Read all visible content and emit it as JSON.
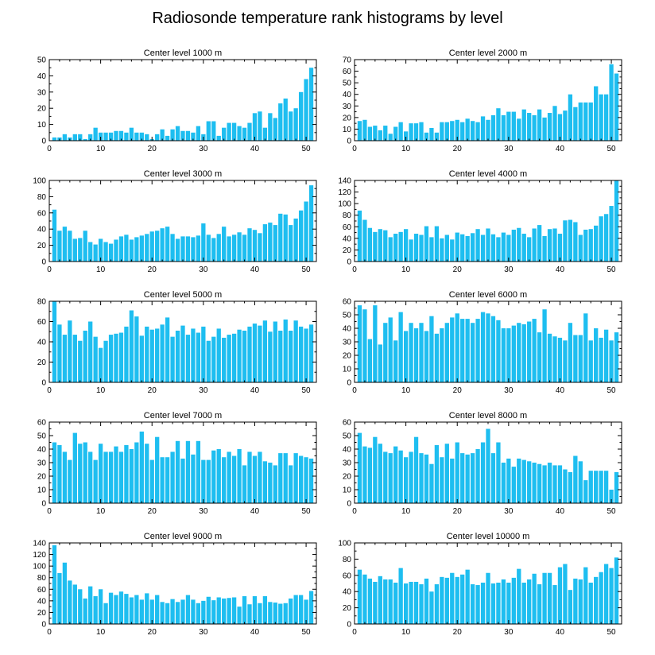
{
  "figure_title": "Radiosonde temperature rank histograms by level",
  "colors": {
    "bar": "#1ebef0",
    "axis": "#000000",
    "background": "#ffffff"
  },
  "chart_data": [
    {
      "type": "bar",
      "title": "Center level 1000 m",
      "xlim": [
        0,
        52
      ],
      "xticks": [
        0,
        10,
        20,
        30,
        40,
        50
      ],
      "ylim": [
        0,
        50
      ],
      "yticks": [
        0,
        10,
        20,
        30,
        40,
        50
      ],
      "x": [
        1,
        2,
        3,
        4,
        5,
        6,
        7,
        8,
        9,
        10,
        11,
        12,
        13,
        14,
        15,
        16,
        17,
        18,
        19,
        20,
        21,
        22,
        23,
        24,
        25,
        26,
        27,
        28,
        29,
        30,
        31,
        32,
        33,
        34,
        35,
        36,
        37,
        38,
        39,
        40,
        41,
        42,
        43,
        44,
        45,
        46,
        47,
        48,
        49,
        50,
        51
      ],
      "values": [
        2,
        2,
        4,
        2,
        4,
        4,
        1,
        4,
        8,
        5,
        5,
        5,
        6,
        6,
        5,
        8,
        5,
        5,
        4,
        1,
        4,
        7,
        3,
        7,
        9,
        6,
        6,
        5,
        9,
        4,
        12,
        12,
        3,
        8,
        11,
        11,
        9,
        8,
        11,
        17,
        18,
        8,
        17,
        14,
        23,
        26,
        18,
        20,
        30,
        38,
        45
      ]
    },
    {
      "type": "bar",
      "title": "Center level 2000 m",
      "xlim": [
        0,
        52
      ],
      "xticks": [
        0,
        10,
        20,
        30,
        40,
        50
      ],
      "ylim": [
        0,
        70
      ],
      "yticks": [
        0,
        10,
        20,
        30,
        40,
        50,
        60,
        70
      ],
      "x": [
        1,
        2,
        3,
        4,
        5,
        6,
        7,
        8,
        9,
        10,
        11,
        12,
        13,
        14,
        15,
        16,
        17,
        18,
        19,
        20,
        21,
        22,
        23,
        24,
        25,
        26,
        27,
        28,
        29,
        30,
        31,
        32,
        33,
        34,
        35,
        36,
        37,
        38,
        39,
        40,
        41,
        42,
        43,
        44,
        45,
        46,
        47,
        48,
        49,
        50,
        51
      ],
      "values": [
        17,
        18,
        12,
        13,
        9,
        13,
        6,
        12,
        16,
        8,
        15,
        15,
        16,
        7,
        11,
        7,
        16,
        16,
        17,
        18,
        16,
        19,
        17,
        16,
        21,
        18,
        22,
        28,
        22,
        25,
        25,
        19,
        27,
        24,
        22,
        27,
        20,
        24,
        30,
        23,
        26,
        40,
        29,
        33,
        33,
        33,
        47,
        40,
        40,
        66,
        58
      ]
    },
    {
      "type": "bar",
      "title": "Center level 3000 m",
      "xlim": [
        0,
        52
      ],
      "xticks": [
        0,
        10,
        20,
        30,
        40,
        50
      ],
      "ylim": [
        0,
        100
      ],
      "yticks": [
        0,
        20,
        40,
        60,
        80,
        100
      ],
      "x": [
        1,
        2,
        3,
        4,
        5,
        6,
        7,
        8,
        9,
        10,
        11,
        12,
        13,
        14,
        15,
        16,
        17,
        18,
        19,
        20,
        21,
        22,
        23,
        24,
        25,
        26,
        27,
        28,
        29,
        30,
        31,
        32,
        33,
        34,
        35,
        36,
        37,
        38,
        39,
        40,
        41,
        42,
        43,
        44,
        45,
        46,
        47,
        48,
        49,
        50,
        51
      ],
      "values": [
        64,
        38,
        43,
        38,
        28,
        29,
        38,
        24,
        21,
        28,
        24,
        22,
        27,
        31,
        33,
        27,
        30,
        32,
        34,
        37,
        38,
        41,
        43,
        34,
        28,
        31,
        31,
        30,
        32,
        47,
        33,
        29,
        34,
        43,
        31,
        33,
        36,
        33,
        41,
        39,
        35,
        46,
        48,
        45,
        59,
        58,
        45,
        53,
        63,
        74,
        94
      ]
    },
    {
      "type": "bar",
      "title": "Center level 4000 m",
      "xlim": [
        0,
        52
      ],
      "xticks": [
        0,
        10,
        20,
        30,
        40,
        50
      ],
      "ylim": [
        0,
        140
      ],
      "yticks": [
        0,
        20,
        40,
        60,
        80,
        100,
        120,
        140
      ],
      "x": [
        1,
        2,
        3,
        4,
        5,
        6,
        7,
        8,
        9,
        10,
        11,
        12,
        13,
        14,
        15,
        16,
        17,
        18,
        19,
        20,
        21,
        22,
        23,
        24,
        25,
        26,
        27,
        28,
        29,
        30,
        31,
        32,
        33,
        34,
        35,
        36,
        37,
        38,
        39,
        40,
        41,
        42,
        43,
        44,
        45,
        46,
        47,
        48,
        49,
        50,
        51
      ],
      "values": [
        88,
        72,
        58,
        51,
        56,
        54,
        42,
        48,
        51,
        56,
        38,
        48,
        46,
        61,
        42,
        61,
        40,
        46,
        38,
        50,
        47,
        44,
        49,
        56,
        46,
        57,
        47,
        42,
        50,
        46,
        55,
        58,
        48,
        42,
        57,
        63,
        44,
        56,
        57,
        48,
        71,
        72,
        68,
        46,
        55,
        56,
        62,
        78,
        82,
        96,
        140
      ]
    },
    {
      "type": "bar",
      "title": "Center level 5000 m",
      "xlim": [
        0,
        52
      ],
      "xticks": [
        0,
        10,
        20,
        30,
        40,
        50
      ],
      "ylim": [
        0,
        80
      ],
      "yticks": [
        0,
        20,
        40,
        60,
        80
      ],
      "x": [
        1,
        2,
        3,
        4,
        5,
        6,
        7,
        8,
        9,
        10,
        11,
        12,
        13,
        14,
        15,
        16,
        17,
        18,
        19,
        20,
        21,
        22,
        23,
        24,
        25,
        26,
        27,
        28,
        29,
        30,
        31,
        32,
        33,
        34,
        35,
        36,
        37,
        38,
        39,
        40,
        41,
        42,
        43,
        44,
        45,
        46,
        47,
        48,
        49,
        50,
        51
      ],
      "values": [
        80,
        57,
        47,
        61,
        47,
        41,
        51,
        60,
        45,
        34,
        41,
        47,
        48,
        49,
        55,
        71,
        65,
        46,
        55,
        52,
        53,
        57,
        64,
        45,
        51,
        56,
        47,
        53,
        49,
        55,
        41,
        45,
        53,
        44,
        47,
        48,
        52,
        51,
        55,
        58,
        56,
        61,
        50,
        60,
        51,
        62,
        51,
        61,
        55,
        53,
        57
      ]
    },
    {
      "type": "bar",
      "title": "Center level 6000 m",
      "xlim": [
        0,
        52
      ],
      "xticks": [
        0,
        10,
        20,
        30,
        40,
        50
      ],
      "ylim": [
        0,
        60
      ],
      "yticks": [
        0,
        10,
        20,
        30,
        40,
        50,
        60
      ],
      "x": [
        1,
        2,
        3,
        4,
        5,
        6,
        7,
        8,
        9,
        10,
        11,
        12,
        13,
        14,
        15,
        16,
        17,
        18,
        19,
        20,
        21,
        22,
        23,
        24,
        25,
        26,
        27,
        28,
        29,
        30,
        31,
        32,
        33,
        34,
        35,
        36,
        37,
        38,
        39,
        40,
        41,
        42,
        43,
        44,
        45,
        46,
        47,
        48,
        49,
        50,
        51
      ],
      "values": [
        57,
        54,
        32,
        57,
        28,
        44,
        48,
        31,
        52,
        38,
        44,
        40,
        44,
        38,
        49,
        36,
        40,
        44,
        48,
        51,
        47,
        47,
        44,
        47,
        52,
        51,
        49,
        46,
        40,
        40,
        42,
        44,
        43,
        45,
        47,
        37,
        54,
        36,
        34,
        33,
        31,
        44,
        35,
        35,
        51,
        31,
        40,
        33,
        39,
        31,
        37
      ]
    },
    {
      "type": "bar",
      "title": "Center level 7000 m",
      "xlim": [
        0,
        52
      ],
      "xticks": [
        0,
        10,
        20,
        30,
        40,
        50
      ],
      "ylim": [
        0,
        60
      ],
      "yticks": [
        0,
        10,
        20,
        30,
        40,
        50,
        60
      ],
      "x": [
        1,
        2,
        3,
        4,
        5,
        6,
        7,
        8,
        9,
        10,
        11,
        12,
        13,
        14,
        15,
        16,
        17,
        18,
        19,
        20,
        21,
        22,
        23,
        24,
        25,
        26,
        27,
        28,
        29,
        30,
        31,
        32,
        33,
        34,
        35,
        36,
        37,
        38,
        39,
        40,
        41,
        42,
        43,
        44,
        45,
        46,
        47,
        48,
        49,
        50,
        51
      ],
      "values": [
        45,
        43,
        38,
        32,
        52,
        44,
        45,
        38,
        32,
        44,
        38,
        38,
        42,
        38,
        43,
        40,
        45,
        53,
        44,
        32,
        49,
        34,
        34,
        38,
        46,
        33,
        46,
        36,
        46,
        32,
        32,
        39,
        40,
        34,
        38,
        35,
        40,
        28,
        38,
        35,
        38,
        31,
        30,
        28,
        37,
        37,
        28,
        37,
        35,
        34,
        33
      ]
    },
    {
      "type": "bar",
      "title": "Center level 8000 m",
      "xlim": [
        0,
        52
      ],
      "xticks": [
        0,
        10,
        20,
        30,
        40,
        50
      ],
      "ylim": [
        0,
        60
      ],
      "yticks": [
        0,
        10,
        20,
        30,
        40,
        50,
        60
      ],
      "x": [
        1,
        2,
        3,
        4,
        5,
        6,
        7,
        8,
        9,
        10,
        11,
        12,
        13,
        14,
        15,
        16,
        17,
        18,
        19,
        20,
        21,
        22,
        23,
        24,
        25,
        26,
        27,
        28,
        29,
        30,
        31,
        32,
        33,
        34,
        35,
        36,
        37,
        38,
        39,
        40,
        41,
        42,
        43,
        44,
        45,
        46,
        47,
        48,
        49,
        50,
        51
      ],
      "values": [
        52,
        42,
        41,
        49,
        44,
        38,
        37,
        42,
        39,
        34,
        38,
        49,
        37,
        36,
        29,
        43,
        34,
        44,
        33,
        45,
        37,
        36,
        37,
        40,
        45,
        55,
        37,
        45,
        30,
        33,
        27,
        33,
        32,
        31,
        30,
        29,
        28,
        30,
        28,
        28,
        25,
        23,
        35,
        31,
        17,
        24,
        24,
        24,
        24,
        10,
        23
      ]
    },
    {
      "type": "bar",
      "title": "Center level 9000 m",
      "xlim": [
        0,
        52
      ],
      "xticks": [
        0,
        10,
        20,
        30,
        40,
        50
      ],
      "ylim": [
        0,
        140
      ],
      "yticks": [
        0,
        20,
        40,
        60,
        80,
        100,
        120,
        140
      ],
      "x": [
        1,
        2,
        3,
        4,
        5,
        6,
        7,
        8,
        9,
        10,
        11,
        12,
        13,
        14,
        15,
        16,
        17,
        18,
        19,
        20,
        21,
        22,
        23,
        24,
        25,
        26,
        27,
        28,
        29,
        30,
        31,
        32,
        33,
        34,
        35,
        36,
        37,
        38,
        39,
        40,
        41,
        42,
        43,
        44,
        45,
        46,
        47,
        48,
        49,
        50,
        51
      ],
      "values": [
        136,
        88,
        106,
        75,
        68,
        60,
        44,
        65,
        48,
        60,
        36,
        54,
        50,
        56,
        52,
        46,
        50,
        42,
        53,
        42,
        50,
        38,
        36,
        43,
        38,
        42,
        50,
        42,
        36,
        40,
        47,
        41,
        46,
        44,
        45,
        46,
        30,
        48,
        34,
        48,
        36,
        48,
        38,
        37,
        35,
        36,
        44,
        50,
        50,
        42,
        57
      ]
    },
    {
      "type": "bar",
      "title": "Center level 10000 m",
      "xlim": [
        0,
        52
      ],
      "xticks": [
        0,
        10,
        20,
        30,
        40,
        50
      ],
      "ylim": [
        0,
        100
      ],
      "yticks": [
        0,
        20,
        40,
        60,
        80,
        100
      ],
      "x": [
        1,
        2,
        3,
        4,
        5,
        6,
        7,
        8,
        9,
        10,
        11,
        12,
        13,
        14,
        15,
        16,
        17,
        18,
        19,
        20,
        21,
        22,
        23,
        24,
        25,
        26,
        27,
        28,
        29,
        30,
        31,
        32,
        33,
        34,
        35,
        36,
        37,
        38,
        39,
        40,
        41,
        42,
        43,
        44,
        45,
        46,
        47,
        48,
        49,
        50,
        51
      ],
      "values": [
        67,
        61,
        56,
        52,
        59,
        55,
        55,
        51,
        69,
        50,
        52,
        52,
        49,
        56,
        40,
        49,
        58,
        57,
        63,
        58,
        61,
        67,
        49,
        48,
        51,
        63,
        50,
        51,
        55,
        51,
        57,
        68,
        51,
        55,
        62,
        49,
        63,
        63,
        48,
        70,
        74,
        42,
        56,
        55,
        70,
        51,
        58,
        64,
        74,
        69,
        82
      ]
    }
  ]
}
